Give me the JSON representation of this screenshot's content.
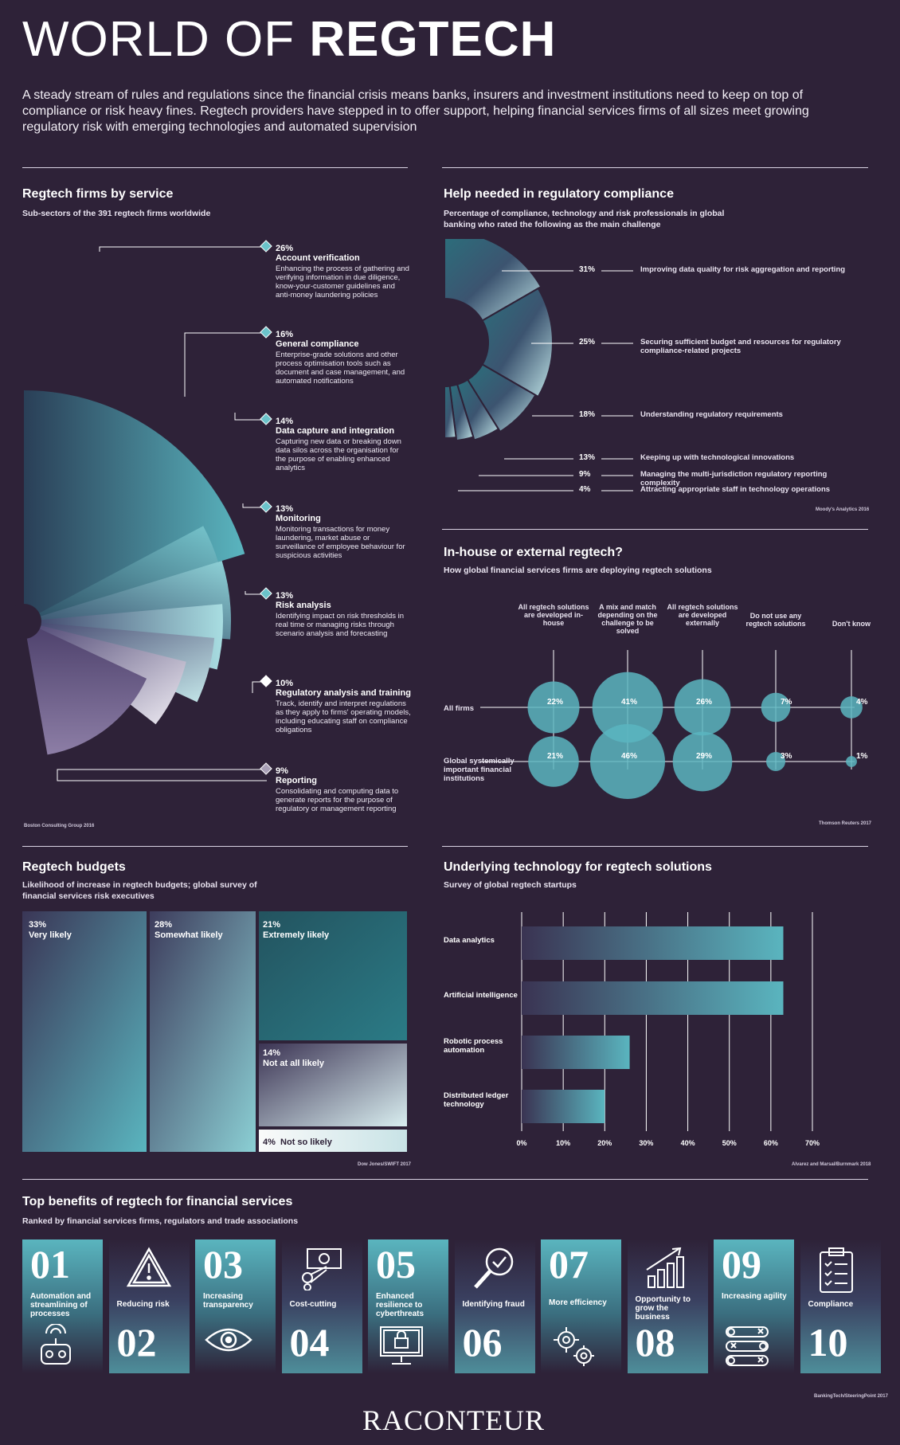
{
  "header": {
    "title_light": "WORLD OF ",
    "title_bold": "REGTECH",
    "intro": "A steady stream of rules and regulations since the financial crisis means banks, insurers and investment institutions need to keep on top of compliance or risk heavy fines. Regtech providers have stepped in to offer support, helping financial services firms of all sizes meet growing regulatory risk with emerging technologies and automated supervision"
  },
  "colors": {
    "background": "#2e2238",
    "teal": "#5ab5bf",
    "dark_teal": "#27717e",
    "light": "#e6e1ec"
  },
  "services": {
    "title": "Regtech firms by service",
    "subtitle": "Sub-sectors of the 391 regtech firms worldwide",
    "source": "Boston Consulting Group 2016",
    "items": [
      {
        "pct": "26%",
        "name": "Account verification",
        "desc": "Enhancing the process of gathering and verifying information in due diligence, know-your-customer guidelines and anti-money laundering policies"
      },
      {
        "pct": "16%",
        "name": "General compliance",
        "desc": "Enterprise-grade solutions and other process optimisation tools such as document and case management, and automated notifications"
      },
      {
        "pct": "14%",
        "name": "Data capture and integration",
        "desc": "Capturing new data or breaking down data silos across the organisation for the purpose of enabling enhanced analytics"
      },
      {
        "pct": "13%",
        "name": "Monitoring",
        "desc": "Monitoring transactions for money laundering, market abuse or surveillance of employee behaviour for suspicious activities"
      },
      {
        "pct": "13%",
        "name": "Risk analysis",
        "desc": "Identifying impact on risk thresholds in real time or managing risks through scenario analysis and forecasting"
      },
      {
        "pct": "10%",
        "name": "Regulatory analysis and training",
        "desc": "Track, identify and interpret regulations as they apply to firms' operating models, including educating staff on compliance obligations"
      },
      {
        "pct": "9%",
        "name": "Reporting",
        "desc": "Consolidating and computing data to generate reports for the purpose of regulatory or management reporting"
      }
    ]
  },
  "help": {
    "title": "Help needed in regulatory compliance",
    "subtitle": "Percentage of compliance, technology and risk professionals in global banking who rated the following as the main challenge",
    "source": "Moody's Analytics 2016",
    "items": [
      {
        "pct": "31%",
        "label": "Improving data quality for risk aggregation and reporting"
      },
      {
        "pct": "25%",
        "label": "Securing sufficient budget and resources for regulatory compliance-related projects"
      },
      {
        "pct": "18%",
        "label": "Understanding regulatory requirements"
      },
      {
        "pct": "13%",
        "label": "Keeping up with technological innovations"
      },
      {
        "pct": "9%",
        "label": "Managing the multi-jurisdiction regulatory reporting complexity"
      },
      {
        "pct": "4%",
        "label": "Attracting appropriate staff in technology operations"
      }
    ]
  },
  "inhouse": {
    "title": "In-house or external regtech?",
    "subtitle": "How global financial services firms are deploying regtech solutions",
    "source": "Thomson Reuters 2017",
    "columns": [
      "All regtech solutions are developed in-house",
      "A mix and match depending on the challenge to be solved",
      "All regtech solutions are developed externally",
      "Do not use any regtech solutions",
      "Don't know"
    ],
    "rows": [
      {
        "label": "All firms",
        "values": [
          "22%",
          "41%",
          "26%",
          "7%",
          "4%"
        ]
      },
      {
        "label": "Global systemically important financial institutions",
        "values": [
          "21%",
          "46%",
          "29%",
          "3%",
          "1%"
        ]
      }
    ]
  },
  "budgets": {
    "title": "Regtech budgets",
    "subtitle": "Likelihood of increase in regtech budgets; global survey of financial services risk executives",
    "source": "Dow Jones/SWIFT 2017",
    "items": [
      {
        "pct": "33%",
        "label": "Very likely"
      },
      {
        "pct": "28%",
        "label": "Somewhat likely"
      },
      {
        "pct": "21%",
        "label": "Extremely likely"
      },
      {
        "pct": "14%",
        "label": "Not at all likely"
      },
      {
        "pct": "4%",
        "label": "Not so likely"
      }
    ]
  },
  "technology": {
    "title": "Underlying technology for regtech solutions",
    "subtitle": "Survey of global regtech startups",
    "source": "Alvarez and Marsal/Burnmark 2018"
  },
  "chart_data": [
    {
      "type": "bar",
      "title": "Underlying technology for regtech solutions",
      "categories": [
        "Data analytics",
        "Artificial intelligence",
        "Robotic process automation",
        "Distributed ledger technology"
      ],
      "values": [
        63,
        63,
        26,
        20
      ],
      "xlim": [
        0,
        70
      ],
      "ticks": [
        "0%",
        "10%",
        "20%",
        "30%",
        "40%",
        "50%",
        "60%",
        "70%"
      ],
      "orientation": "horizontal",
      "grid": true
    }
  ],
  "benefits": {
    "title": "Top benefits of regtech for financial services",
    "subtitle": "Ranked by financial services firms, regulators and trade associations",
    "source": "BankingTech/SteeringPoint 2017",
    "items": [
      {
        "num": "01",
        "label": "Automation and streamlining of processes",
        "icon": "robot-icon"
      },
      {
        "num": "02",
        "label": "Reducing risk",
        "icon": "warning-icon"
      },
      {
        "num": "03",
        "label": "Increasing transparency",
        "icon": "eye-icon"
      },
      {
        "num": "04",
        "label": "Cost-cutting",
        "icon": "money-icon"
      },
      {
        "num": "05",
        "label": "Enhanced resilience to cyberthreats",
        "icon": "lock-screen-icon"
      },
      {
        "num": "06",
        "label": "Identifying fraud",
        "icon": "magnifier-icon"
      },
      {
        "num": "07",
        "label": "More efficiency",
        "icon": "gears-icon"
      },
      {
        "num": "08",
        "label": "Opportunity to grow the business",
        "icon": "growth-chart-icon"
      },
      {
        "num": "09",
        "label": "Increasing agility",
        "icon": "toggles-icon"
      },
      {
        "num": "10",
        "label": "Compliance",
        "icon": "clipboard-icon"
      }
    ]
  },
  "footer": {
    "brand": "RACONTEUR"
  }
}
